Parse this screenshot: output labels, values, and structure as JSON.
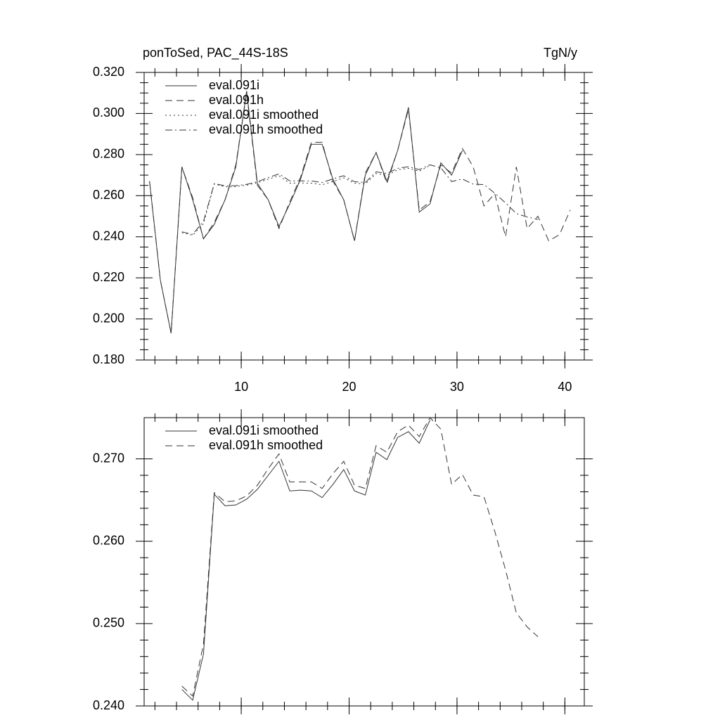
{
  "chart_data": [
    {
      "type": "line",
      "title": "ponToSed, PAC_44S-18S",
      "unit": "TgN/y",
      "x": [
        1.5,
        2.5,
        3.5,
        4.5,
        5.5,
        6.5,
        7.5,
        8.5,
        9.5,
        10.5,
        11.5,
        12.5,
        13.5,
        14.5,
        15.5,
        16.5,
        17.5,
        18.5,
        19.5,
        20.5,
        21.5,
        22.5,
        23.5,
        24.5,
        25.5,
        26.5,
        27.5,
        28.5,
        29.5,
        30.5,
        31.5,
        32.5,
        33.5,
        34.5,
        35.5,
        36.5,
        37.5,
        38.5,
        39.5,
        40.5
      ],
      "xlim": [
        1,
        41.8
      ],
      "xticks": [
        10,
        20,
        30,
        40
      ],
      "ylim": [
        0.18,
        0.32
      ],
      "yticks": [
        {
          "value": 0.18,
          "label": "0.180"
        },
        {
          "value": 0.2,
          "label": "0.200"
        },
        {
          "value": 0.22,
          "label": "0.220"
        },
        {
          "value": 0.24,
          "label": "0.240"
        },
        {
          "value": 0.26,
          "label": "0.260"
        },
        {
          "value": 0.28,
          "label": "0.280"
        },
        {
          "value": 0.3,
          "label": "0.300"
        },
        {
          "value": 0.32,
          "label": "0.320"
        }
      ],
      "legend": "upper left",
      "series": [
        {
          "name": "eval.091i",
          "color": "#333333",
          "dash": "none",
          "values": [
            0.267,
            0.219,
            0.193,
            0.274,
            0.258,
            0.239,
            0.246,
            0.258,
            0.274,
            0.311,
            0.266,
            0.258,
            0.245,
            0.256,
            0.268,
            0.285,
            0.285,
            0.268,
            0.258,
            0.238,
            0.27,
            0.281,
            0.267,
            0.282,
            0.303,
            0.252,
            0.256,
            0.276,
            0.27,
            0.282,
            null,
            null,
            null,
            null,
            null,
            null,
            null,
            null,
            null,
            null
          ]
        },
        {
          "name": "eval.091h",
          "color": "#333333",
          "dash": "10,6",
          "values": [
            0.267,
            0.219,
            0.193,
            0.274,
            0.259,
            0.239,
            0.247,
            0.258,
            0.275,
            0.31,
            0.265,
            0.258,
            0.244,
            0.257,
            0.269,
            0.286,
            0.286,
            0.267,
            0.258,
            0.238,
            0.271,
            0.281,
            0.266,
            0.282,
            0.302,
            0.253,
            0.257,
            0.275,
            0.271,
            0.283,
            0.274,
            0.255,
            0.261,
            0.24,
            0.274,
            0.244,
            0.25,
            0.238,
            0.241,
            0.253
          ]
        },
        {
          "name": "eval.091i smoothed",
          "color": "#333333",
          "dash": "2,4",
          "values": [
            null,
            null,
            null,
            0.242,
            0.2407,
            0.2463,
            0.2657,
            0.2643,
            0.2644,
            0.2651,
            0.2663,
            0.268,
            0.2697,
            0.2661,
            0.2662,
            0.2661,
            0.2653,
            0.2669,
            0.2687,
            0.2661,
            0.2656,
            0.2708,
            0.2699,
            0.2726,
            0.2733,
            0.2719,
            0.2747,
            null,
            null,
            null,
            null,
            null,
            null,
            null,
            null,
            null,
            null,
            null,
            null,
            null
          ]
        },
        {
          "name": "eval.091h smoothed",
          "color": "#333333",
          "dash": "10,4,2,4",
          "values": [
            null,
            null,
            null,
            0.2424,
            0.2412,
            0.2475,
            0.2659,
            0.2648,
            0.2649,
            0.2655,
            0.2668,
            0.2688,
            0.2706,
            0.2672,
            0.2672,
            0.2672,
            0.2664,
            0.2682,
            0.2697,
            0.2668,
            0.2664,
            0.2716,
            0.2708,
            0.2733,
            0.2741,
            0.2727,
            0.275,
            0.2736,
            0.2669,
            0.2681,
            0.2656,
            0.2654,
            0.2612,
            0.2565,
            0.2513,
            0.2496,
            0.2484,
            null,
            null,
            null
          ]
        }
      ]
    },
    {
      "type": "line",
      "x": [
        1.5,
        2.5,
        3.5,
        4.5,
        5.5,
        6.5,
        7.5,
        8.5,
        9.5,
        10.5,
        11.5,
        12.5,
        13.5,
        14.5,
        15.5,
        16.5,
        17.5,
        18.5,
        19.5,
        20.5,
        21.5,
        22.5,
        23.5,
        24.5,
        25.5,
        26.5,
        27.5,
        28.5,
        29.5,
        30.5,
        31.5,
        32.5,
        33.5,
        34.5,
        35.5,
        36.5,
        37.5,
        38.5,
        39.5,
        40.5
      ],
      "xlim": [
        1,
        41.8
      ],
      "xticks": [
        10,
        20,
        30,
        40
      ],
      "ylim": [
        0.24,
        0.275
      ],
      "yticks": [
        {
          "value": 0.24,
          "label": "0.240"
        },
        {
          "value": 0.25,
          "label": "0.250"
        },
        {
          "value": 0.26,
          "label": "0.260"
        },
        {
          "value": 0.27,
          "label": "0.270"
        }
      ],
      "legend": "upper left",
      "series": [
        {
          "name": "eval.091i smoothed",
          "color": "#333333",
          "dash": "none",
          "values": [
            null,
            null,
            null,
            0.242,
            0.2407,
            0.2463,
            0.2657,
            0.2643,
            0.2644,
            0.2651,
            0.2663,
            0.268,
            0.2697,
            0.2661,
            0.2662,
            0.2661,
            0.2653,
            0.2669,
            0.2687,
            0.2661,
            0.2656,
            0.2708,
            0.2699,
            0.2726,
            0.2733,
            0.2719,
            0.2747,
            null,
            null,
            null,
            null,
            null,
            null,
            null,
            null,
            null,
            null,
            null,
            null,
            null
          ]
        },
        {
          "name": "eval.091h smoothed",
          "color": "#333333",
          "dash": "10,6",
          "values": [
            null,
            null,
            null,
            0.2424,
            0.2412,
            0.2475,
            0.2659,
            0.2648,
            0.2649,
            0.2655,
            0.2668,
            0.2688,
            0.2706,
            0.2672,
            0.2672,
            0.2672,
            0.2664,
            0.2682,
            0.2697,
            0.2668,
            0.2664,
            0.2716,
            0.2708,
            0.2733,
            0.2741,
            0.2727,
            0.275,
            0.2736,
            0.2669,
            0.2681,
            0.2656,
            0.2654,
            0.2612,
            0.2565,
            0.2513,
            0.2496,
            0.2484,
            null,
            null,
            null
          ]
        }
      ]
    }
  ]
}
